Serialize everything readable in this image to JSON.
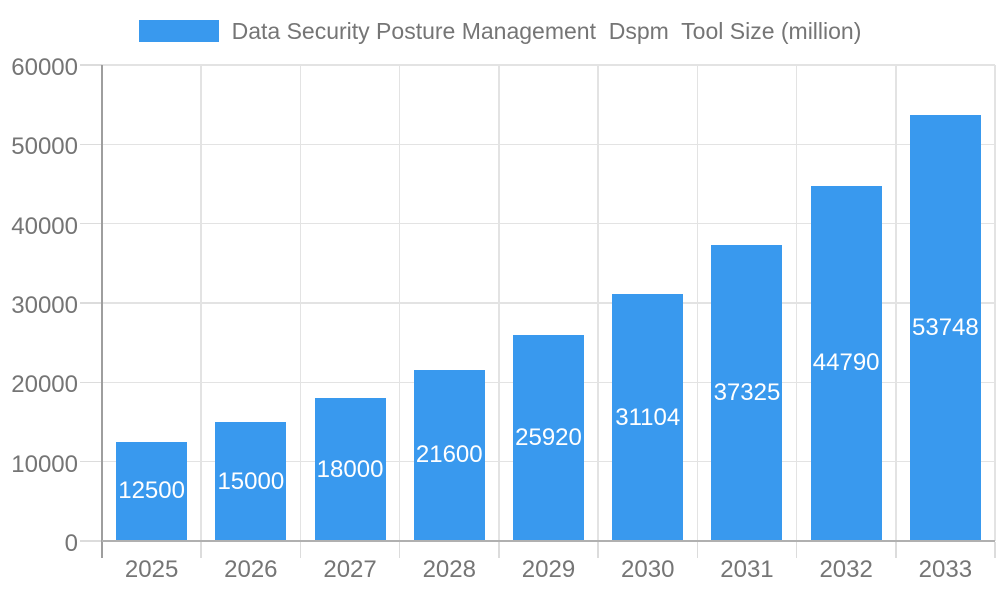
{
  "chart_data": {
    "type": "bar",
    "title": "Data Security Posture Management  Dspm  Tool Size (million)",
    "categories": [
      "2025",
      "2026",
      "2027",
      "2028",
      "2029",
      "2030",
      "2031",
      "2032",
      "2033"
    ],
    "values": [
      12500,
      15000,
      18000,
      21600,
      25920,
      31104,
      37325,
      44790,
      53748
    ],
    "xlabel": "",
    "ylabel": "",
    "ylim": [
      0,
      60000
    ],
    "ytick_step": 10000,
    "ytick_labels": [
      "0",
      "10000",
      "20000",
      "30000",
      "40000",
      "50000",
      "60000"
    ],
    "grid": true,
    "legend_position": "top",
    "colors": {
      "bar": "#3999EE",
      "value_label": "#FFFFFF",
      "axis_text": "#757575",
      "gridline": "#E3E3E3",
      "tick": "#DCDCDC",
      "y_axis_line": "#9E9E9E",
      "x_axis_line": "#B0B0B0",
      "background": "#FFFFFF"
    }
  }
}
